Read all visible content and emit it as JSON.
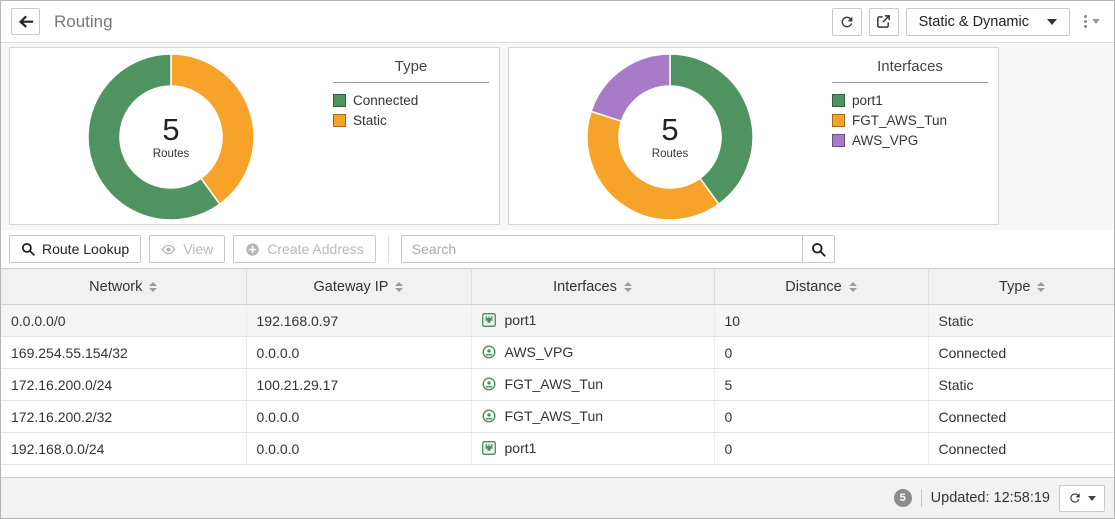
{
  "header": {
    "title": "Routing",
    "view_selector": "Static & Dynamic"
  },
  "chart_data": [
    {
      "type": "donut",
      "title": "Type",
      "center_value": "5",
      "center_label": "Routes",
      "segments": [
        {
          "label": "Static",
          "value": 2,
          "color": "#f7a329"
        },
        {
          "label": "Connected",
          "value": 3,
          "color": "#4f9460"
        }
      ],
      "legend": [
        {
          "label": "Connected",
          "color": "#4f9460"
        },
        {
          "label": "Static",
          "color": "#f7a329"
        }
      ]
    },
    {
      "type": "donut",
      "title": "Interfaces",
      "center_value": "5",
      "center_label": "Routes",
      "segments": [
        {
          "label": "port1",
          "value": 2,
          "color": "#4f9460"
        },
        {
          "label": "FGT_AWS_Tun",
          "value": 2,
          "color": "#f7a329"
        },
        {
          "label": "AWS_VPG",
          "value": 1,
          "color": "#a87bc9"
        }
      ],
      "legend": [
        {
          "label": "port1",
          "color": "#4f9460"
        },
        {
          "label": "FGT_AWS_Tun",
          "color": "#f7a329"
        },
        {
          "label": "AWS_VPG",
          "color": "#a87bc9"
        }
      ]
    }
  ],
  "toolbar": {
    "route_lookup_label": "Route Lookup",
    "view_label": "View",
    "create_address_label": "Create Address",
    "search_placeholder": "Search"
  },
  "table": {
    "columns": [
      "Network",
      "Gateway IP",
      "Interfaces",
      "Distance",
      "Type"
    ],
    "rows": [
      {
        "network": "0.0.0.0/0",
        "gateway": "192.168.0.97",
        "interface": "port1",
        "interface_icon": "port-icon",
        "distance": "10",
        "type": "Static",
        "selected": true
      },
      {
        "network": "169.254.55.154/32",
        "gateway": "0.0.0.0",
        "interface": "AWS_VPG",
        "interface_icon": "tunnel-icon",
        "distance": "0",
        "type": "Connected",
        "selected": false
      },
      {
        "network": "172.16.200.0/24",
        "gateway": "100.21.29.17",
        "interface": "FGT_AWS_Tun",
        "interface_icon": "tunnel-icon",
        "distance": "5",
        "type": "Static",
        "selected": false
      },
      {
        "network": "172.16.200.2/32",
        "gateway": "0.0.0.0",
        "interface": "FGT_AWS_Tun",
        "interface_icon": "tunnel-icon",
        "distance": "0",
        "type": "Connected",
        "selected": false
      },
      {
        "network": "192.168.0.0/24",
        "gateway": "0.0.0.0",
        "interface": "port1",
        "interface_icon": "port-icon",
        "distance": "0",
        "type": "Connected",
        "selected": false
      }
    ]
  },
  "statusbar": {
    "count_badge": "5",
    "updated_label": "Updated: 12:58:19"
  }
}
